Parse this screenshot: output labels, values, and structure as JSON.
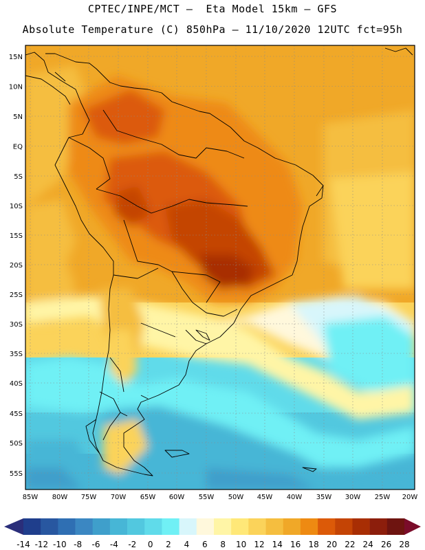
{
  "header": {
    "line1": "CPTEC/INPE/MCT –  Eta Model 15km – GFS",
    "line2": "Absolute Temperature (C) 850hPa – 11/10/2020 12UTC fct=95h"
  },
  "map": {
    "lat_labels": [
      "15N",
      "10N",
      "5N",
      "EQ",
      "5S",
      "10S",
      "15S",
      "20S",
      "25S",
      "30S",
      "35S",
      "40S",
      "45S",
      "50S",
      "55S"
    ],
    "lon_labels": [
      "85W",
      "80W",
      "75W",
      "70W",
      "65W",
      "60W",
      "55W",
      "50W",
      "45W",
      "40W",
      "35W",
      "30W",
      "25W",
      "20W"
    ]
  },
  "colorbar": {
    "labels": [
      "-14",
      "-12",
      "-10",
      "-8",
      "-6",
      "-4",
      "-2",
      "0",
      "2",
      "4",
      "6",
      "8",
      "10",
      "12",
      "14",
      "16",
      "18",
      "20",
      "22",
      "24",
      "26",
      "28"
    ],
    "colors": [
      "#1f3e8c",
      "#2857a0",
      "#2f6fb3",
      "#3b87c2",
      "#3f9fcb",
      "#47b6d6",
      "#52c8df",
      "#60dbea",
      "#70f0f5",
      "#d8f6fb",
      "#fff8dc",
      "#fff5a6",
      "#ffe878",
      "#fbd35a",
      "#f5be3f",
      "#f0a828",
      "#ee8a12",
      "#dc5a08",
      "#c44405",
      "#a82e04",
      "#8c1e0c",
      "#6e1410"
    ],
    "low_arrow_color": "#2a2e7a",
    "high_arrow_color": "#7a0c2a"
  }
}
